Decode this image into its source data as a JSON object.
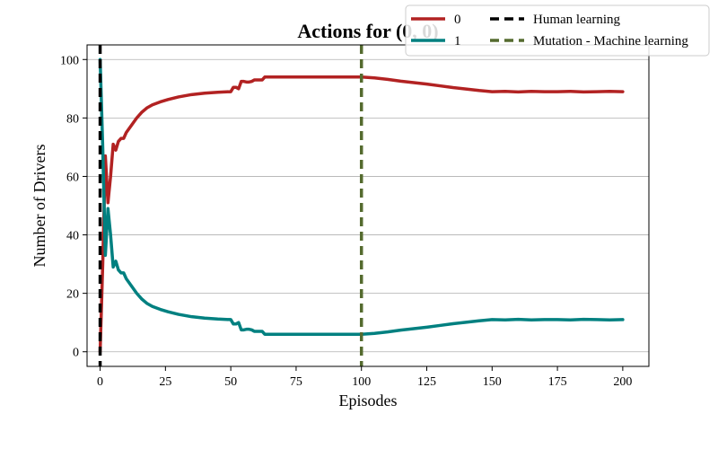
{
  "chart_data": {
    "type": "line",
    "title": "Actions for (0, 0)",
    "xlabel": "Episodes",
    "ylabel": "Number of Drivers",
    "xlim": [
      -5,
      210
    ],
    "ylim": [
      -5,
      105
    ],
    "xticks": [
      0,
      25,
      50,
      75,
      100,
      125,
      150,
      175,
      200
    ],
    "yticks": [
      0,
      20,
      40,
      60,
      80,
      100
    ],
    "grid": "horizontal",
    "legend_position": "top-right",
    "series": [
      {
        "name": "0",
        "color": "#b22222",
        "x": [
          0,
          1,
          2,
          3,
          4,
          5,
          6,
          7,
          8,
          9,
          10,
          12,
          14,
          16,
          18,
          20,
          23,
          26,
          30,
          35,
          40,
          45,
          50,
          51,
          52,
          53,
          54,
          55,
          56,
          57,
          58,
          59,
          60,
          61,
          62,
          63,
          64,
          70,
          80,
          90,
          100,
          105,
          110,
          115,
          120,
          125,
          130,
          135,
          140,
          145,
          150,
          155,
          160,
          165,
          170,
          175,
          180,
          185,
          190,
          195,
          200
        ],
        "y": [
          0,
          30,
          67,
          51,
          60,
          71,
          69,
          72,
          73,
          73,
          75,
          77.5,
          80,
          82,
          83.5,
          84.5,
          85.5,
          86.3,
          87.2,
          88,
          88.5,
          88.8,
          89,
          90.5,
          90.5,
          90,
          92.5,
          92.5,
          92.3,
          92.3,
          92.5,
          93,
          93,
          93,
          93,
          94,
          94,
          94,
          94,
          94,
          94,
          93.7,
          93.2,
          92.6,
          92.1,
          91.6,
          91,
          90.4,
          89.9,
          89.4,
          89,
          89.1,
          88.9,
          89.1,
          89,
          89,
          89.1,
          88.9,
          89,
          89.1,
          89
        ]
      },
      {
        "name": "1",
        "color": "#008080",
        "x": [
          0,
          1,
          2,
          3,
          4,
          5,
          6,
          7,
          8,
          9,
          10,
          12,
          14,
          16,
          18,
          20,
          23,
          26,
          30,
          35,
          40,
          45,
          50,
          51,
          52,
          53,
          54,
          55,
          56,
          57,
          58,
          59,
          60,
          61,
          62,
          63,
          64,
          70,
          80,
          90,
          100,
          105,
          110,
          115,
          120,
          125,
          130,
          135,
          140,
          145,
          150,
          155,
          160,
          165,
          170,
          175,
          180,
          185,
          190,
          195,
          200
        ],
        "y": [
          100,
          70,
          33,
          49,
          40,
          29,
          31,
          28,
          27,
          27,
          25,
          22.5,
          20,
          18,
          16.5,
          15.5,
          14.5,
          13.7,
          12.8,
          12,
          11.5,
          11.2,
          11,
          9.5,
          9.5,
          10,
          7.5,
          7.5,
          7.7,
          7.7,
          7.5,
          7,
          7,
          7,
          7,
          6,
          6,
          6,
          6,
          6,
          6,
          6.3,
          6.8,
          7.4,
          7.9,
          8.4,
          9,
          9.6,
          10.1,
          10.6,
          11,
          10.9,
          11.1,
          10.9,
          11,
          11,
          10.9,
          11.1,
          11,
          10.9,
          11
        ]
      }
    ],
    "vlines": [
      {
        "name": "Human learning",
        "x": 0,
        "color": "#000000"
      },
      {
        "name": "Mutation - Machine learning",
        "x": 100,
        "color": "#556b2f"
      }
    ]
  }
}
